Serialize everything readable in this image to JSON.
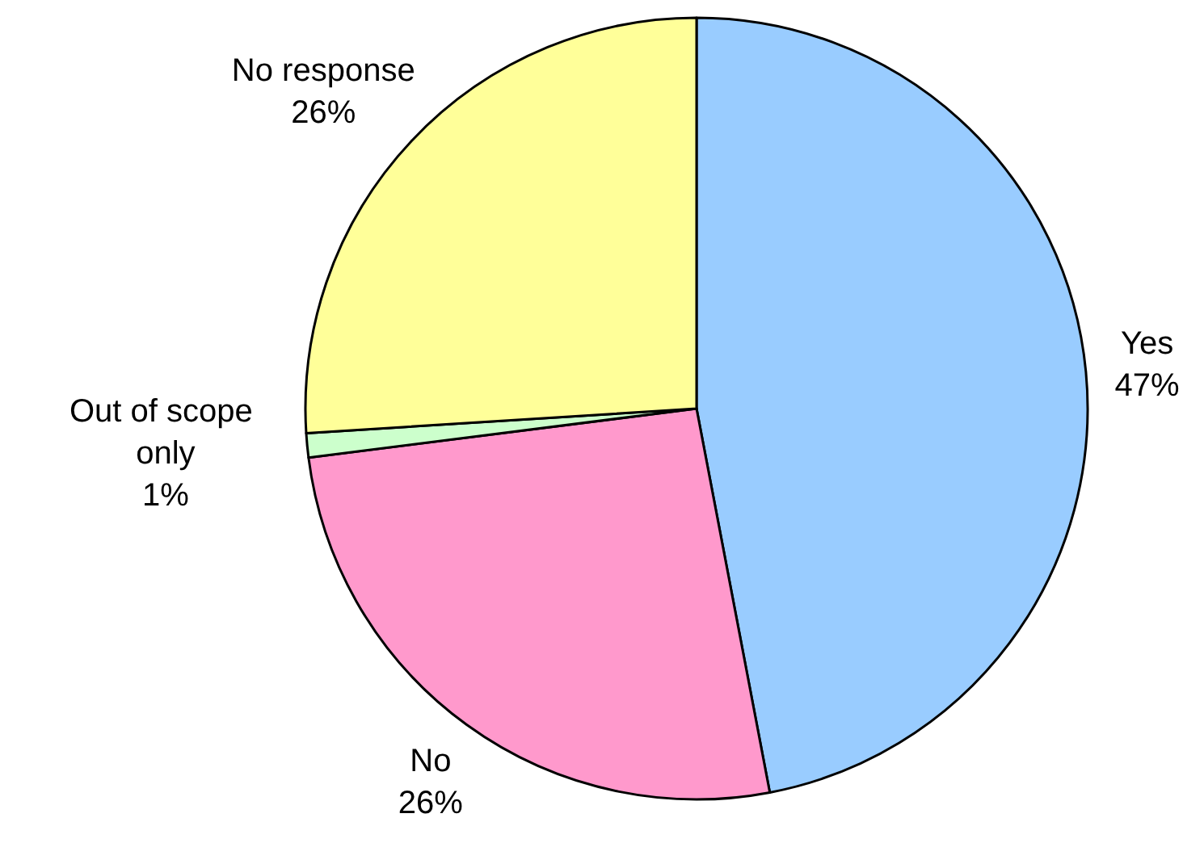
{
  "chart_data": {
    "type": "pie",
    "categories": [
      "Yes",
      "No",
      "Out of scope only",
      "No response"
    ],
    "values": [
      47,
      26,
      1,
      26
    ],
    "colors": [
      "#99ccff",
      "#ff99cc",
      "#ccffcc",
      "#ffff99"
    ],
    "value_labels": [
      "47%",
      "26%",
      "1%",
      "26%"
    ]
  }
}
